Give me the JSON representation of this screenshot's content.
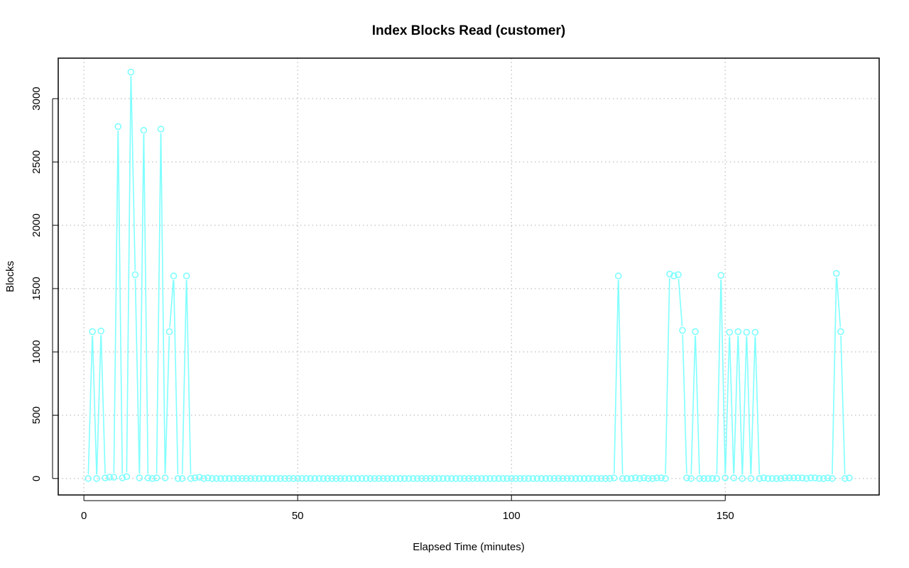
{
  "chart_data": {
    "type": "line",
    "title": "Index Blocks Read (customer)",
    "xlabel": "Elapsed Time (minutes)",
    "ylabel": "Blocks",
    "xlim": [
      -6,
      186
    ],
    "ylim": [
      -130,
      3320
    ],
    "x_ticks": [
      0,
      50,
      100,
      150
    ],
    "y_ticks": [
      0,
      500,
      1000,
      1500,
      2000,
      2500,
      3000
    ],
    "grid": true,
    "markers": "open-circle",
    "series_color": "#7fffff",
    "series": [
      {
        "x": [
          1,
          2,
          3,
          4,
          5,
          6,
          7,
          8,
          9,
          10,
          11,
          12,
          13,
          14,
          15,
          16,
          17,
          18,
          19,
          20,
          21,
          22,
          23,
          24,
          25,
          26,
          27,
          28,
          29,
          30,
          31,
          32,
          33,
          34,
          35,
          36,
          37,
          38,
          39,
          40,
          41,
          42,
          43,
          44,
          45,
          46,
          47,
          48,
          49,
          50,
          51,
          52,
          53,
          54,
          55,
          56,
          57,
          58,
          59,
          60,
          61,
          62,
          63,
          64,
          65,
          66,
          67,
          68,
          69,
          70,
          71,
          72,
          73,
          74,
          75,
          76,
          77,
          78,
          79,
          80,
          81,
          82,
          83,
          84,
          85,
          86,
          87,
          88,
          89,
          90,
          91,
          92,
          93,
          94,
          95,
          96,
          97,
          98,
          99,
          100,
          101,
          102,
          103,
          104,
          105,
          106,
          107,
          108,
          109,
          110,
          111,
          112,
          113,
          114,
          115,
          116,
          117,
          118,
          119,
          120,
          121,
          122,
          123,
          124,
          125,
          126,
          127,
          128,
          129,
          130,
          131,
          132,
          133,
          134,
          135,
          136,
          137,
          138,
          139,
          140,
          141,
          142,
          143,
          144,
          145,
          146,
          147,
          148,
          149,
          150,
          151,
          152,
          153,
          154,
          155,
          156,
          157,
          158,
          159,
          160,
          161,
          162,
          163,
          164,
          165,
          166,
          167,
          168,
          169,
          170,
          171,
          172,
          173,
          174,
          175,
          176,
          177,
          178,
          179
        ],
        "values": [
          0,
          1160,
          0,
          1165,
          5,
          10,
          10,
          2780,
          5,
          15,
          3210,
          1610,
          5,
          2750,
          5,
          0,
          5,
          2760,
          5,
          1160,
          1600,
          0,
          0,
          1600,
          0,
          5,
          10,
          0,
          5,
          0,
          0,
          0,
          0,
          0,
          0,
          0,
          0,
          0,
          0,
          0,
          0,
          0,
          0,
          0,
          0,
          0,
          0,
          0,
          0,
          0,
          0,
          0,
          0,
          0,
          0,
          0,
          0,
          0,
          0,
          0,
          0,
          0,
          0,
          0,
          0,
          0,
          0,
          0,
          0,
          0,
          0,
          0,
          0,
          0,
          0,
          0,
          0,
          0,
          0,
          0,
          0,
          0,
          0,
          0,
          0,
          0,
          0,
          0,
          0,
          0,
          0,
          0,
          0,
          0,
          0,
          0,
          0,
          0,
          0,
          0,
          0,
          0,
          0,
          0,
          0,
          0,
          0,
          0,
          0,
          0,
          0,
          0,
          0,
          0,
          0,
          0,
          0,
          0,
          0,
          0,
          0,
          0,
          0,
          5,
          1600,
          0,
          0,
          0,
          5,
          0,
          5,
          0,
          0,
          5,
          5,
          0,
          1615,
          1600,
          1610,
          1170,
          5,
          0,
          1160,
          0,
          0,
          0,
          0,
          0,
          1605,
          5,
          1155,
          5,
          1160,
          0,
          1155,
          0,
          1155,
          0,
          5,
          0,
          0,
          0,
          0,
          5,
          5,
          5,
          5,
          5,
          0,
          5,
          5,
          0,
          0,
          5,
          0,
          1620,
          1160,
          0,
          5
        ]
      }
    ]
  }
}
